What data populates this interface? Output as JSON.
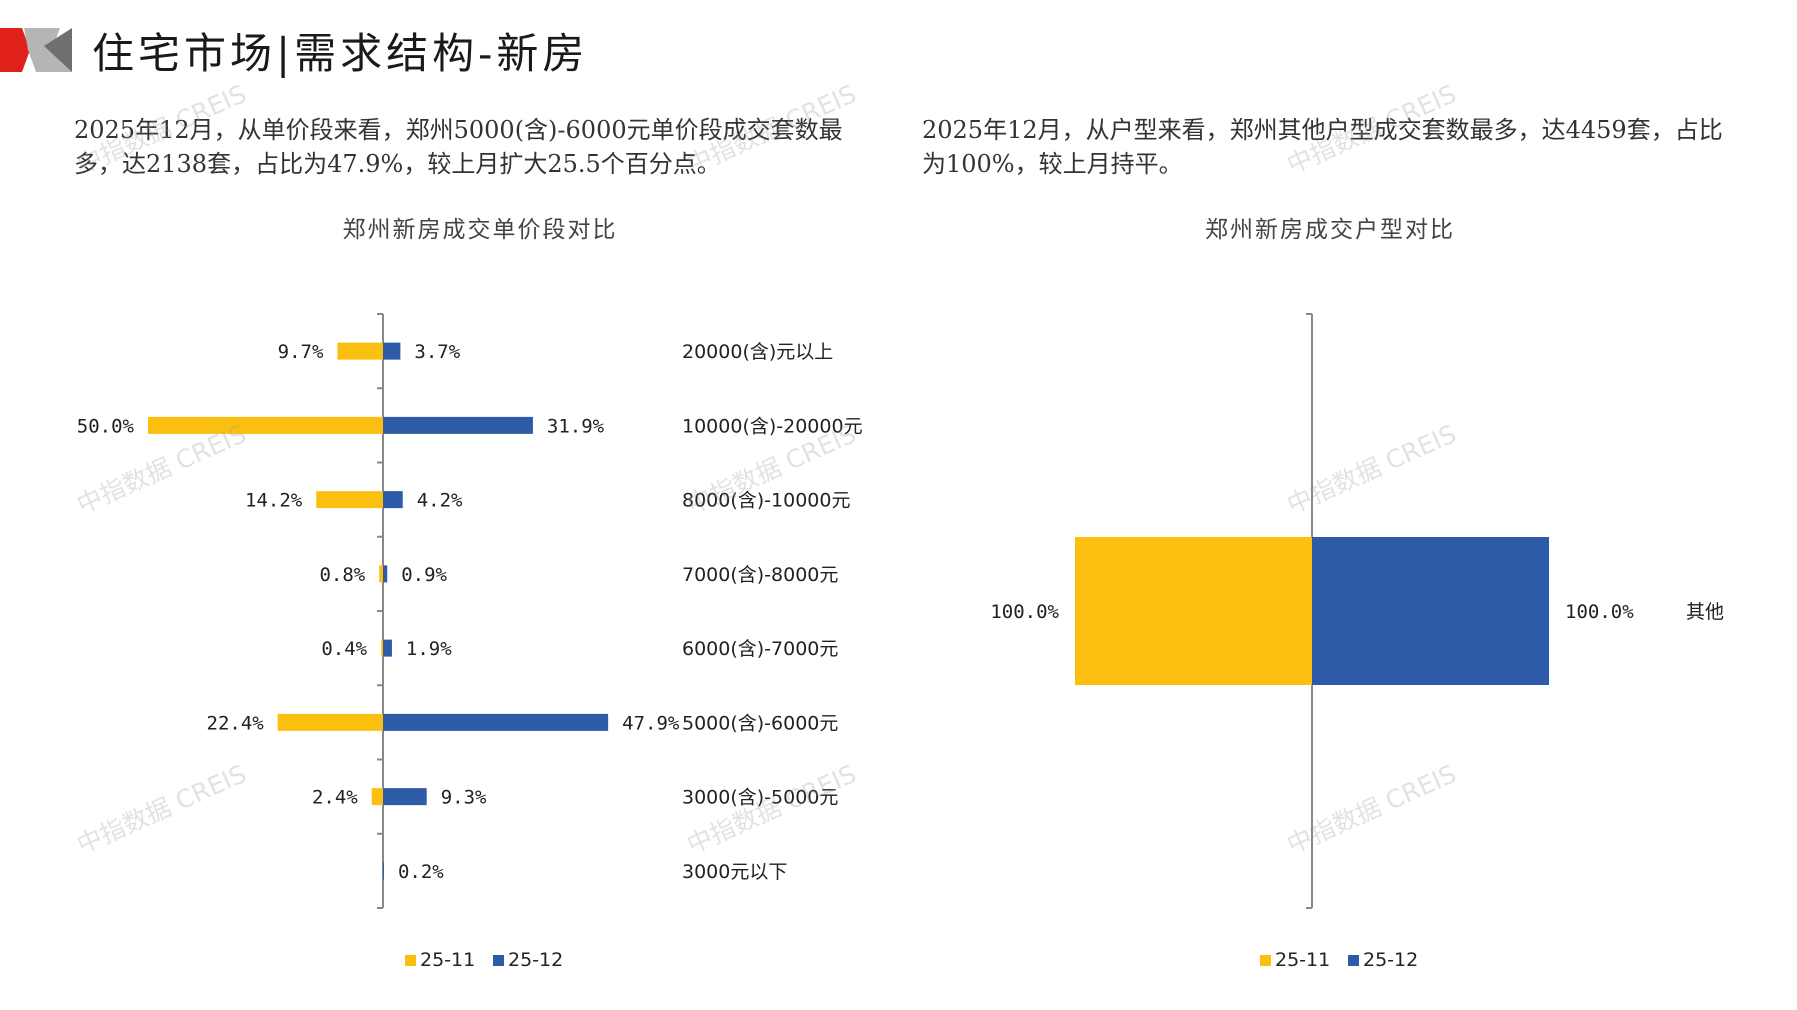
{
  "header": {
    "title": "住宅市场|需求结构-新房"
  },
  "summary": {
    "left": "2025年12月，从单价段来看，郑州5000(含)-6000元单价段成交套数最多，达2138套，占比为47.9%，较上月扩大25.5个百分点。",
    "right": "2025年12月，从户型来看，郑州其他户型成交套数最多，达4459套，占比为100%，较上月持平。"
  },
  "watermark": "中指数据 CREIS",
  "colors": {
    "prev": "#FBBF10",
    "curr": "#2E5BA8",
    "axis": "#888888",
    "logo_red": "#E0201B",
    "logo_gray": "#B5B5B5"
  },
  "chart_data": [
    {
      "type": "bar",
      "orientation": "butterfly",
      "title": "郑州新房成交单价段对比",
      "categories": [
        "20000(含)元以上",
        "10000(含)-20000元",
        "8000(含)-10000元",
        "7000(含)-8000元",
        "6000(含)-7000元",
        "5000(含)-6000元",
        "3000(含)-5000元",
        "3000元以下"
      ],
      "series": [
        {
          "name": "25-11",
          "values": [
            9.7,
            50.0,
            14.2,
            0.8,
            0.4,
            22.4,
            2.4,
            null
          ],
          "labels": [
            "9.7%",
            "50.0%",
            "14.2%",
            "0.8%",
            "0.4%",
            "22.4%",
            "2.4%",
            ""
          ]
        },
        {
          "name": "25-12",
          "values": [
            3.7,
            31.9,
            4.2,
            0.9,
            1.9,
            47.9,
            9.3,
            0.2
          ],
          "labels": [
            "3.7%",
            "31.9%",
            "4.2%",
            "0.9%",
            "1.9%",
            "47.9%",
            "9.3%",
            "0.2%"
          ]
        }
      ],
      "legend": "bottom"
    },
    {
      "type": "bar",
      "orientation": "butterfly",
      "title": "郑州新房成交户型对比",
      "categories": [
        "其他"
      ],
      "series": [
        {
          "name": "25-11",
          "values": [
            100.0
          ],
          "labels": [
            "100.0%"
          ]
        },
        {
          "name": "25-12",
          "values": [
            100.0
          ],
          "labels": [
            "100.0%"
          ]
        }
      ],
      "legend": "bottom"
    }
  ]
}
